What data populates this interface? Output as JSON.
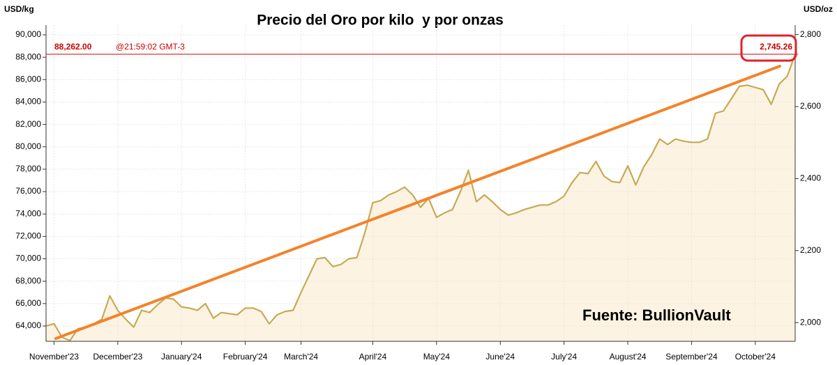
{
  "chart_data": {
    "type": "line",
    "title": "Precio del Oro por kilo  y por onzas",
    "y_label": "USD/kg",
    "y2_label": "USD/oz",
    "annotation": "Fuente: BullionVault",
    "categories": [
      null,
      "November'23",
      null,
      null,
      null,
      null,
      null,
      null,
      null,
      "December'23",
      null,
      null,
      null,
      null,
      null,
      null,
      null,
      "January'24",
      null,
      null,
      null,
      null,
      null,
      null,
      null,
      "February'24",
      null,
      null,
      null,
      null,
      null,
      null,
      "March'24",
      null,
      null,
      null,
      null,
      null,
      null,
      null,
      null,
      "April'24",
      null,
      null,
      null,
      null,
      null,
      null,
      null,
      "May'24",
      null,
      null,
      null,
      null,
      null,
      null,
      null,
      "June'24",
      null,
      null,
      null,
      null,
      null,
      null,
      null,
      "July'24",
      null,
      null,
      null,
      null,
      null,
      null,
      null,
      "August'24",
      null,
      null,
      null,
      null,
      null,
      null,
      null,
      "September'24",
      null,
      null,
      null,
      null,
      null,
      null,
      null,
      "October'24",
      null,
      null,
      null,
      null,
      null
    ],
    "series": [
      {
        "color": "#c6aa55",
        "values": [
          64000,
          64200,
          63000,
          62700,
          63750,
          63900,
          64200,
          64600,
          66700,
          65400,
          64600,
          63900,
          65400,
          65200,
          65900,
          66500,
          66400,
          65700,
          65600,
          65400,
          66000,
          64700,
          65200,
          65100,
          65000,
          65600,
          65600,
          65300,
          64200,
          65000,
          65300,
          65400,
          67000,
          68500,
          70000,
          70100,
          69300,
          69500,
          70000,
          70100,
          72300,
          75000,
          75200,
          75700,
          76000,
          76400,
          75700,
          74600,
          75400,
          73700,
          74100,
          74400,
          76000,
          77900,
          75100,
          75700,
          75100,
          74400,
          73900,
          74100,
          74400,
          74600,
          74800,
          74800,
          75100,
          75600,
          76800,
          77700,
          77600,
          78700,
          77400,
          76900,
          76800,
          78300,
          76600,
          78200,
          79300,
          80700,
          80200,
          80700,
          80500,
          80400,
          80400,
          80700,
          83000,
          83200,
          84300,
          85400,
          85500,
          85300,
          85100,
          83800,
          85600,
          86300,
          88262
        ]
      }
    ],
    "area_color": "#fdf3e2",
    "ylim": [
      62630,
      90870
    ],
    "yticks": [
      {
        "value": 64000,
        "label": "64,000"
      },
      {
        "value": 66000,
        "label": "66,000"
      },
      {
        "value": 68000,
        "label": "68,000"
      },
      {
        "value": 70000,
        "label": "70,000"
      },
      {
        "value": 72000,
        "label": "72,000"
      },
      {
        "value": 74000,
        "label": "74,000"
      },
      {
        "value": 76000,
        "label": "76,000"
      },
      {
        "value": 78000,
        "label": "78,000"
      },
      {
        "value": 80000,
        "label": "80,000"
      },
      {
        "value": 82000,
        "label": "82,000"
      },
      {
        "value": 84000,
        "label": "84,000"
      },
      {
        "value": 86000,
        "label": "86,000"
      },
      {
        "value": 88000,
        "label": "88,000"
      },
      {
        "value": 90000,
        "label": "90,000"
      }
    ],
    "y2lim": [
      1948,
      2826.4
    ],
    "y2ticks": [
      {
        "value": 2000,
        "label": "2,000"
      },
      {
        "value": 2200,
        "label": "2,200"
      },
      {
        "value": 2400,
        "label": "2,400"
      },
      {
        "value": 2600,
        "label": "2,600"
      },
      {
        "value": 2800,
        "label": "2,800"
      }
    ],
    "price_line": {
      "value": 88262,
      "label": "88,262.00",
      "time": "@21:59:02 GMT-3",
      "value_oz": 2745.26,
      "label_oz": "2,745.26",
      "color": "#cc0000"
    },
    "grid": true
  }
}
